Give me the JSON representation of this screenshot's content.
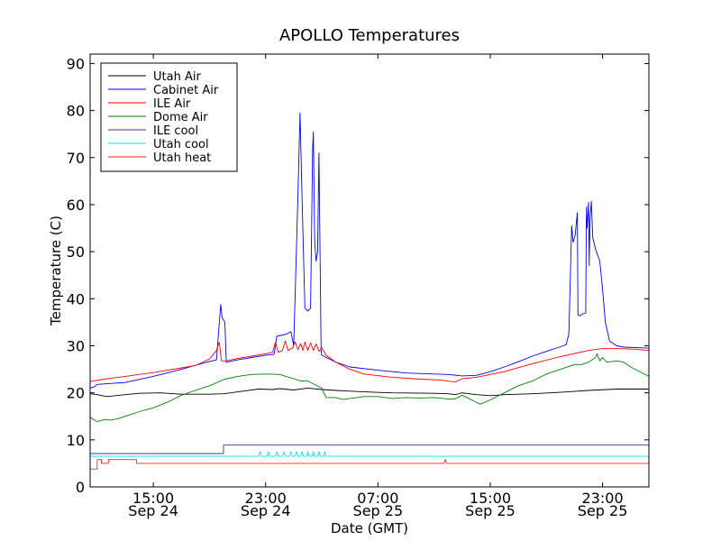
{
  "chart_data": {
    "type": "line",
    "title": "APOLLO Temperatures",
    "xlabel": "Date (GMT)",
    "ylabel": "Temperature (C)",
    "xlim": [
      10.5,
      50.3
    ],
    "ylim": [
      0,
      92
    ],
    "x_units": "hours since Sep 24 00:00 GMT",
    "x_ticks": [
      {
        "x": 15,
        "line1": "15:00",
        "line2": "Sep 24"
      },
      {
        "x": 23,
        "line1": "23:00",
        "line2": "Sep 24"
      },
      {
        "x": 31,
        "line1": "07:00",
        "line2": "Sep 25"
      },
      {
        "x": 39,
        "line1": "15:00",
        "line2": "Sep 25"
      },
      {
        "x": 47,
        "line1": "23:00",
        "line2": "Sep 25"
      }
    ],
    "y_ticks": [
      0,
      10,
      20,
      30,
      40,
      50,
      60,
      70,
      80,
      90
    ],
    "legend_position": "top-left",
    "series": [
      {
        "name": "Utah Air",
        "color": "#000000",
        "points": [
          [
            10.5,
            19.8
          ],
          [
            11,
            19.6
          ],
          [
            11.7,
            19.2
          ],
          [
            13,
            19.6
          ],
          [
            14,
            19.9
          ],
          [
            15.5,
            20
          ],
          [
            17,
            19.7
          ],
          [
            19,
            19.7
          ],
          [
            20,
            19.8
          ],
          [
            21.5,
            20.4
          ],
          [
            22.5,
            20.8
          ],
          [
            23.5,
            20.7
          ],
          [
            24,
            20.9
          ],
          [
            25,
            20.6
          ],
          [
            26,
            21
          ],
          [
            27,
            20.7
          ],
          [
            28,
            20.5
          ],
          [
            30,
            20.2
          ],
          [
            32,
            20
          ],
          [
            35,
            19.9
          ],
          [
            36,
            19.8
          ],
          [
            36.5,
            19.6
          ],
          [
            37,
            20
          ],
          [
            38,
            19.6
          ],
          [
            39,
            19.4
          ],
          [
            40,
            19.6
          ],
          [
            42,
            19.8
          ],
          [
            44,
            20.1
          ],
          [
            46,
            20.5
          ],
          [
            48,
            20.8
          ],
          [
            50.3,
            20.8
          ]
        ]
      },
      {
        "name": "Cabinet Air",
        "color": "#0000ff",
        "points": [
          [
            10.5,
            21
          ],
          [
            10.8,
            21.3
          ],
          [
            11,
            21.8
          ],
          [
            13,
            22.2
          ],
          [
            15,
            23.5
          ],
          [
            17,
            25
          ],
          [
            18.8,
            26.5
          ],
          [
            19.5,
            27
          ],
          [
            19.8,
            38.8
          ],
          [
            19.9,
            36
          ],
          [
            20.1,
            35
          ],
          [
            20.2,
            26.5
          ],
          [
            21,
            27
          ],
          [
            22,
            27.5
          ],
          [
            23,
            28
          ],
          [
            23.6,
            28.2
          ],
          [
            23.8,
            32
          ],
          [
            24.5,
            32.5
          ],
          [
            24.8,
            33
          ],
          [
            25,
            30
          ],
          [
            25.3,
            62
          ],
          [
            25.45,
            79.5
          ],
          [
            25.6,
            61
          ],
          [
            25.8,
            38
          ],
          [
            26,
            37.4
          ],
          [
            26.2,
            38
          ],
          [
            26.35,
            72
          ],
          [
            26.4,
            75.5
          ],
          [
            26.5,
            52
          ],
          [
            26.6,
            48
          ],
          [
            26.7,
            50
          ],
          [
            26.8,
            71
          ],
          [
            26.95,
            29
          ],
          [
            27,
            28
          ],
          [
            28,
            26.5
          ],
          [
            29,
            25.5
          ],
          [
            31,
            24.8
          ],
          [
            33,
            24.2
          ],
          [
            35,
            24
          ],
          [
            36,
            23.9
          ],
          [
            37,
            23.6
          ],
          [
            38,
            23.7
          ],
          [
            39,
            24.5
          ],
          [
            40,
            25.5
          ],
          [
            41,
            26.6
          ],
          [
            42,
            27.8
          ],
          [
            43,
            28.8
          ],
          [
            44,
            29.8
          ],
          [
            44.4,
            30.2
          ],
          [
            44.6,
            32.5
          ],
          [
            44.8,
            55.5
          ],
          [
            44.9,
            52
          ],
          [
            45.05,
            53.5
          ],
          [
            45.2,
            58.3
          ],
          [
            45.25,
            36.5
          ],
          [
            45.4,
            36.4
          ],
          [
            45.6,
            36.8
          ],
          [
            45.8,
            37
          ],
          [
            45.85,
            59.5
          ],
          [
            45.9,
            55
          ],
          [
            46,
            60.5
          ],
          [
            46.05,
            47
          ],
          [
            46.1,
            57
          ],
          [
            46.2,
            60.7
          ],
          [
            46.3,
            53
          ],
          [
            46.5,
            50.5
          ],
          [
            46.8,
            48
          ],
          [
            47,
            42
          ],
          [
            47.2,
            35
          ],
          [
            47.5,
            31
          ],
          [
            48,
            30
          ],
          [
            48.5,
            29.7
          ],
          [
            50.3,
            29.5
          ]
        ]
      },
      {
        "name": "ILE Air",
        "color": "#ff0000",
        "points": [
          [
            10.5,
            22.4
          ],
          [
            11.5,
            22.9
          ],
          [
            13,
            23.5
          ],
          [
            15,
            24.3
          ],
          [
            16,
            24.8
          ],
          [
            17,
            25.3
          ],
          [
            18,
            25.8
          ],
          [
            19,
            27.2
          ],
          [
            19.5,
            29
          ],
          [
            19.7,
            30.8
          ],
          [
            19.85,
            26.8
          ],
          [
            20.2,
            26.8
          ],
          [
            21,
            27.3
          ],
          [
            22,
            27.8
          ],
          [
            23,
            28.3
          ],
          [
            23.5,
            28.6
          ],
          [
            23.7,
            30.8
          ],
          [
            23.9,
            28.6
          ],
          [
            24.2,
            29
          ],
          [
            24.4,
            31
          ],
          [
            24.6,
            29
          ],
          [
            24.9,
            29.5
          ],
          [
            25.1,
            30.8
          ],
          [
            25.3,
            29.2
          ],
          [
            25.5,
            30.5
          ],
          [
            25.65,
            29
          ],
          [
            25.8,
            30.8
          ],
          [
            26,
            29
          ],
          [
            26.2,
            30.6
          ],
          [
            26.4,
            29
          ],
          [
            26.6,
            30.4
          ],
          [
            26.8,
            28.8
          ],
          [
            27,
            29.6
          ],
          [
            27.3,
            28
          ],
          [
            28,
            26.5
          ],
          [
            29,
            25
          ],
          [
            30,
            24
          ],
          [
            32,
            23.3
          ],
          [
            34,
            22.9
          ],
          [
            35.5,
            22.7
          ],
          [
            36,
            22.5
          ],
          [
            36.5,
            22.3
          ],
          [
            37,
            23
          ],
          [
            38,
            23.3
          ],
          [
            40,
            24.5
          ],
          [
            42,
            26.2
          ],
          [
            44,
            27.7
          ],
          [
            46,
            29
          ],
          [
            47,
            29.4
          ],
          [
            48,
            29.4
          ],
          [
            49,
            29.3
          ],
          [
            50.3,
            29
          ]
        ]
      },
      {
        "name": "Dome Air",
        "color": "#008000",
        "points": [
          [
            10.5,
            14.8
          ],
          [
            10.8,
            14.2
          ],
          [
            11,
            13.9
          ],
          [
            11.5,
            14.3
          ],
          [
            12,
            14.2
          ],
          [
            12.5,
            14.5
          ],
          [
            13,
            15
          ],
          [
            14,
            16
          ],
          [
            15,
            16.8
          ],
          [
            16,
            18
          ],
          [
            17,
            19.5
          ],
          [
            18,
            20.5
          ],
          [
            19,
            21.5
          ],
          [
            20,
            22.8
          ],
          [
            21,
            23.5
          ],
          [
            22,
            23.9
          ],
          [
            23,
            24
          ],
          [
            24,
            23.9
          ],
          [
            25,
            23
          ],
          [
            25.5,
            22.5
          ],
          [
            26,
            22.5
          ],
          [
            27,
            21
          ],
          [
            27.3,
            19
          ],
          [
            28,
            19
          ],
          [
            28.5,
            18.6
          ],
          [
            29,
            18.8
          ],
          [
            30,
            19.2
          ],
          [
            31,
            19.2
          ],
          [
            32,
            18.8
          ],
          [
            33,
            19
          ],
          [
            34,
            18.9
          ],
          [
            35,
            19
          ],
          [
            36,
            18.7
          ],
          [
            36.5,
            18.7
          ],
          [
            37,
            19.5
          ],
          [
            38,
            18
          ],
          [
            38.3,
            17.6
          ],
          [
            39,
            18.5
          ],
          [
            40,
            20
          ],
          [
            41,
            21.5
          ],
          [
            42,
            22.5
          ],
          [
            43,
            24
          ],
          [
            44,
            25
          ],
          [
            45,
            26
          ],
          [
            45.5,
            26
          ],
          [
            46,
            26.5
          ],
          [
            46.5,
            27.5
          ],
          [
            46.6,
            28.3
          ],
          [
            46.8,
            26.8
          ],
          [
            47,
            27.5
          ],
          [
            47.3,
            26.5
          ],
          [
            48,
            26.8
          ],
          [
            48.5,
            26.5
          ],
          [
            49,
            25.5
          ],
          [
            50.3,
            23.5
          ]
        ]
      },
      {
        "name": "ILE cool",
        "color": "#3a3aa0",
        "points": [
          [
            10.5,
            7.1
          ],
          [
            20,
            7.1
          ],
          [
            20,
            8.9
          ],
          [
            50.3,
            8.9
          ]
        ]
      },
      {
        "name": "Utah cool",
        "color": "#00e5e5",
        "points": [
          [
            10.5,
            6.5
          ],
          [
            22.5,
            6.5
          ],
          [
            22.6,
            7.5
          ],
          [
            22.7,
            6.5
          ],
          [
            23.1,
            6.5
          ],
          [
            23.2,
            7.5
          ],
          [
            23.3,
            6.5
          ],
          [
            23.7,
            6.5
          ],
          [
            23.8,
            7.5
          ],
          [
            23.9,
            6.5
          ],
          [
            24.2,
            6.5
          ],
          [
            24.3,
            7.5
          ],
          [
            24.4,
            6.5
          ],
          [
            24.7,
            6.5
          ],
          [
            24.8,
            7.5
          ],
          [
            24.9,
            6.5
          ],
          [
            25.1,
            6.5
          ],
          [
            25.2,
            7.5
          ],
          [
            25.3,
            6.5
          ],
          [
            25.5,
            6.5
          ],
          [
            25.6,
            7.5
          ],
          [
            25.7,
            6.5
          ],
          [
            25.9,
            6.5
          ],
          [
            26,
            7.5
          ],
          [
            26.1,
            6.5
          ],
          [
            26.3,
            6.5
          ],
          [
            26.4,
            7.5
          ],
          [
            26.5,
            6.5
          ],
          [
            26.7,
            6.5
          ],
          [
            26.8,
            7.5
          ],
          [
            26.9,
            6.5
          ],
          [
            27.1,
            6.5
          ],
          [
            27.2,
            7.5
          ],
          [
            27.3,
            6.5
          ],
          [
            50.3,
            6.5
          ]
        ]
      },
      {
        "name": "Utah heat",
        "color": "#ff2020",
        "points": [
          [
            10.5,
            3.8
          ],
          [
            11,
            3.8
          ],
          [
            11,
            5.8
          ],
          [
            11.3,
            5.8
          ],
          [
            11.3,
            5
          ],
          [
            11.8,
            5
          ],
          [
            11.8,
            5.8
          ],
          [
            13.8,
            5.8
          ],
          [
            13.8,
            5
          ],
          [
            35.7,
            5
          ],
          [
            35.8,
            5.8
          ],
          [
            35.9,
            5
          ],
          [
            50.3,
            5
          ]
        ]
      }
    ]
  }
}
